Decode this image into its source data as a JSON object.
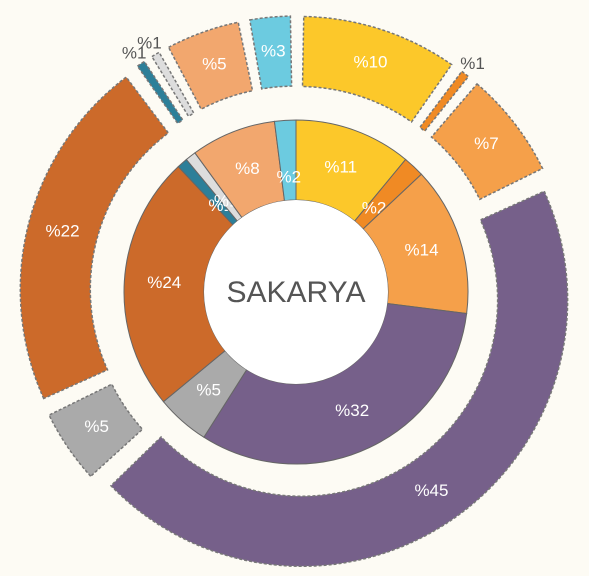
{
  "chart_data": {
    "type": "donut",
    "title": "SAKARYA",
    "rings": [
      {
        "values": [
          11,
          2,
          14,
          32,
          5,
          24,
          1,
          1,
          8,
          2
        ],
        "value_labels": [
          "%11",
          "%2",
          "%14",
          "%32",
          "%5",
          "%24",
          "%1",
          "%1",
          "%8",
          "%2"
        ],
        "colors": [
          "#fcc82a",
          "#f08a24",
          "#f5a04a",
          "#76608a",
          "#aaaaaa",
          "#cc6a2a",
          "#2c7f99",
          "#dddddd",
          "#f2a76e",
          "#6ccbe0"
        ]
      },
      {
        "values": [
          10,
          1,
          7,
          45,
          5,
          22,
          1,
          1,
          5,
          3
        ],
        "value_labels": [
          "%10",
          "%1",
          "%7",
          "%45",
          "%5",
          "%22",
          "%1",
          "%1",
          "%5",
          "%3"
        ],
        "colors": [
          "#fcc82a",
          "#f08a24",
          "#f5a04a",
          "#76608a",
          "#aaaaaa",
          "#cc6a2a",
          "#2c7f99",
          "#dddddd",
          "#f2a76e",
          "#6ccbe0"
        ]
      }
    ]
  }
}
